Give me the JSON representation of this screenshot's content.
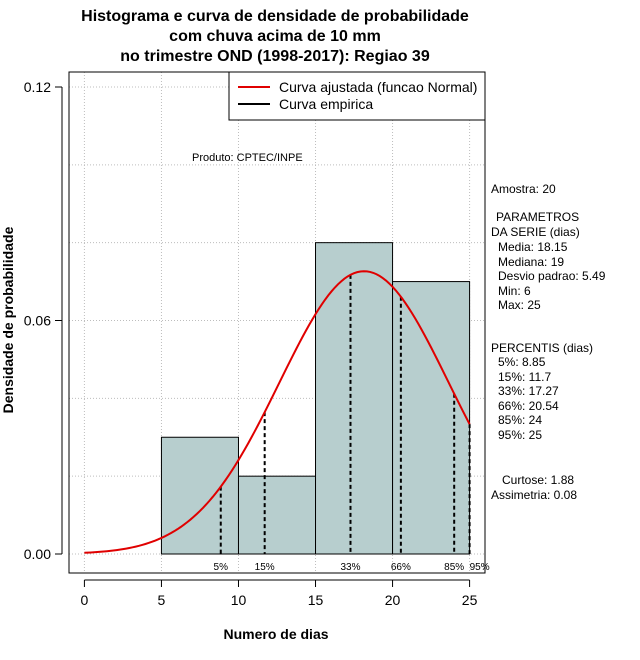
{
  "chart_data": {
    "type": "histogram",
    "title_lines": [
      "Histograma e curva de densidade de probabilidade",
      "com chuva acima de 10 mm",
      "no trimestre OND (1998-2017): Regiao 39"
    ],
    "xlabel": "Numero de dias",
    "ylabel": "Densidade de probabilidade",
    "xlim": [
      -1,
      26
    ],
    "ylim": [
      0,
      0.12
    ],
    "x_ticks": [
      0,
      5,
      10,
      15,
      20,
      25
    ],
    "y_ticks": [
      {
        "value": 0.0,
        "label": "0.00"
      },
      {
        "value": 0.06,
        "label": "0.06"
      },
      {
        "value": 0.12,
        "label": "0.12"
      }
    ],
    "grid": true,
    "bins": [
      {
        "start": 5,
        "end": 10,
        "density": 0.03
      },
      {
        "start": 10,
        "end": 15,
        "density": 0.02
      },
      {
        "start": 15,
        "end": 20,
        "density": 0.08
      },
      {
        "start": 20,
        "end": 25,
        "density": 0.07
      }
    ],
    "bar_color": "#b7cece",
    "normal_fit": {
      "mean": 18.15,
      "sd": 5.49,
      "color": "#e00000",
      "x_range": [
        0,
        25
      ]
    },
    "percentile_lines": [
      {
        "label": "5%",
        "x": 8.85
      },
      {
        "label": "15%",
        "x": 11.7
      },
      {
        "label": "33%",
        "x": 17.27
      },
      {
        "label": "66%",
        "x": 20.54
      },
      {
        "label": "85%",
        "x": 24
      },
      {
        "label": "95%",
        "x": 25
      }
    ],
    "legend": {
      "position": "top-right",
      "entries": [
        {
          "label": "Curva ajustada (funcao Normal)",
          "color": "#e00000"
        },
        {
          "label": "Curva empirica",
          "color": "#000000"
        }
      ]
    },
    "annotation": "Produto: CPTEC/INPE"
  },
  "side_panel": {
    "sample": "Amostra: 20",
    "params_header": "PARAMETROS",
    "params_subheader": "DA SERIE (dias)",
    "params": [
      "Media: 18.15",
      "Mediana: 19",
      "Desvio padrao: 5.49",
      "Min: 6",
      "Max: 25"
    ],
    "percentiles_header": "PERCENTIS (dias)",
    "percentiles": [
      "5%: 8.85",
      "15%: 11.7",
      "33%: 17.27",
      "66%: 20.54",
      "85%: 24",
      "95%: 25"
    ],
    "kurtosis": "Curtose: 1.88",
    "skewness": "Assimetria: 0.08"
  }
}
